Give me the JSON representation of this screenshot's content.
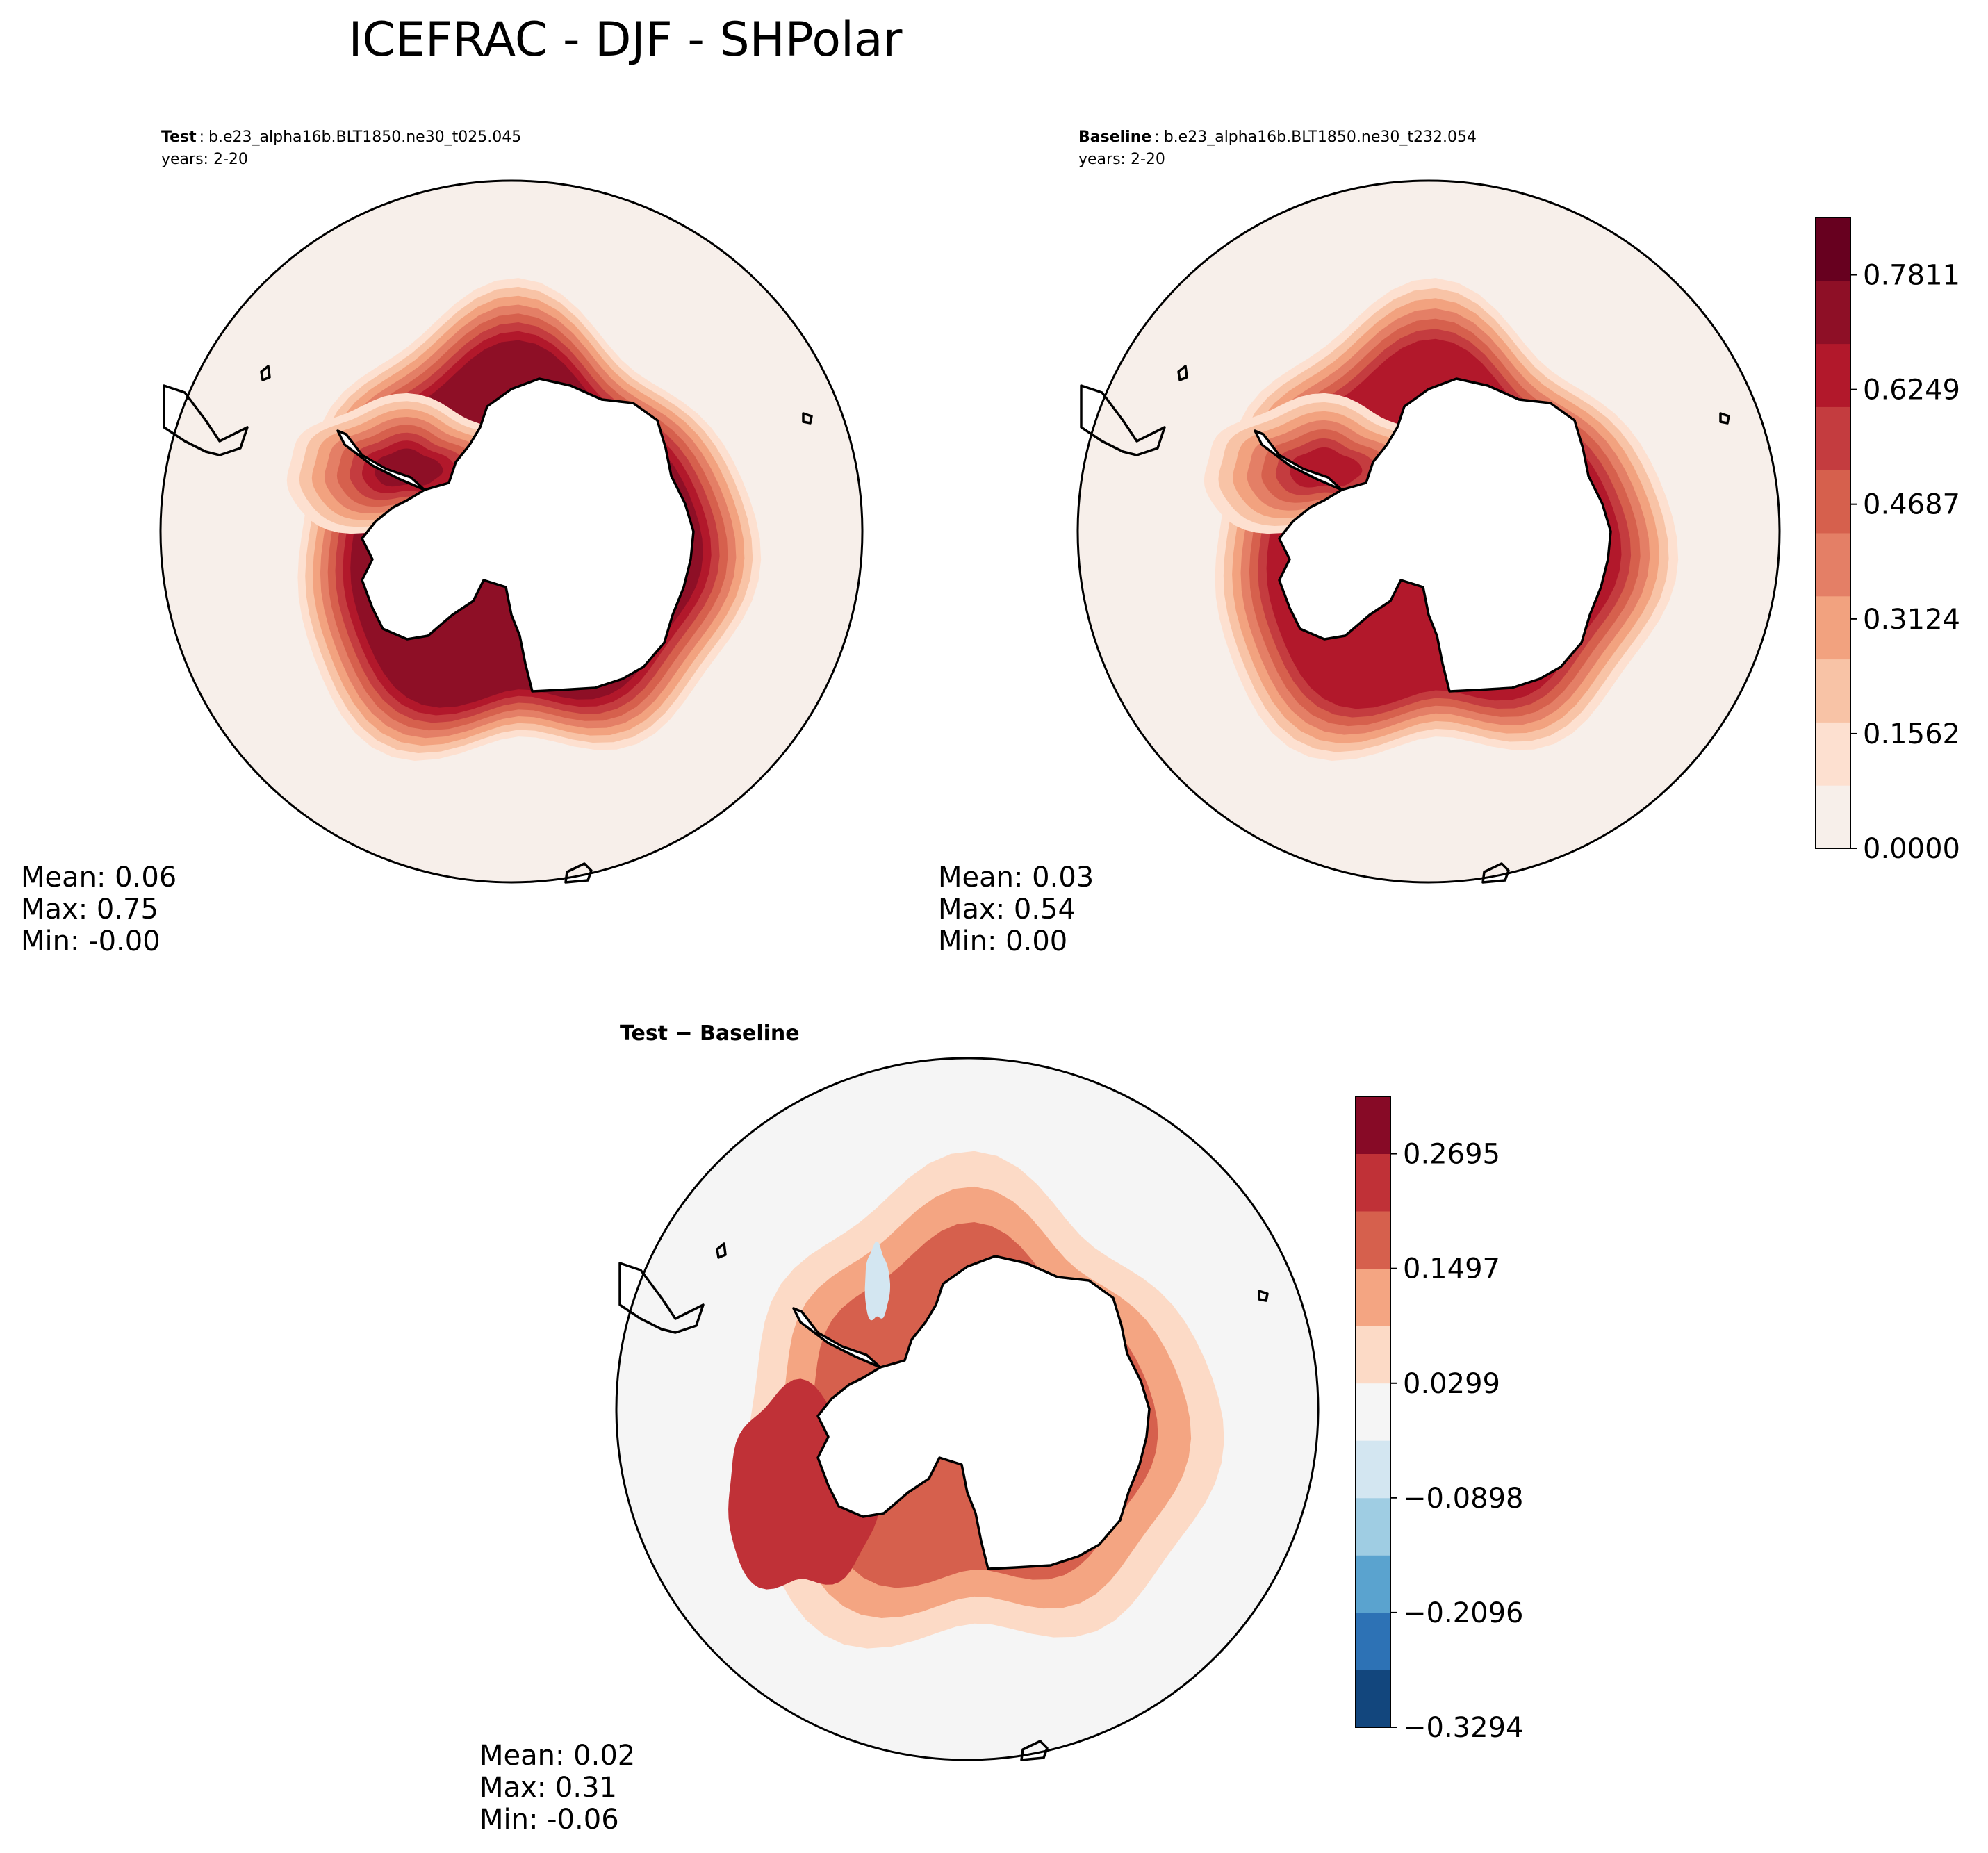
{
  "title": "ICEFRAC - DJF - SHPolar",
  "colors": {
    "frame": "#000000",
    "coast": "#000000",
    "seq": [
      "#f7efea",
      "#fde0d0",
      "#f8c3a6",
      "#f2a27f",
      "#e47f66",
      "#d6604d",
      "#c43c3f",
      "#b2182b",
      "#8e0f26",
      "#67001f"
    ],
    "div": [
      "#12467d",
      "#2d72b5",
      "#5aa3cf",
      "#9fcde3",
      "#d3e6f1",
      "#f5f5f5",
      "#fcdac6",
      "#f4a582",
      "#d6604d",
      "#c03137",
      "#870a26"
    ]
  },
  "chart_data": [
    {
      "type": "contour-map",
      "projection": "south-polar-stereographic",
      "variable": "ICEFRAC",
      "season": "DJF",
      "region": "SHPolar",
      "panel": "test",
      "label_bold": "Test",
      "label_sep": ":",
      "case": "b.e23_alpha16b.BLT1850.ne30_t025.045",
      "years": "years: 2-20",
      "stats": {
        "mean": "Mean:  0.06",
        "max": "Max:  0.75",
        "min": "Min: -0.00"
      },
      "mean": 0.06,
      "max": 0.75,
      "min": -0.0,
      "sea_ice_band_peak_level": 8
    },
    {
      "type": "contour-map",
      "projection": "south-polar-stereographic",
      "variable": "ICEFRAC",
      "season": "DJF",
      "region": "SHPolar",
      "panel": "baseline",
      "label_bold": "Baseline",
      "label_sep": ":",
      "case": "b.e23_alpha16b.BLT1850.ne30_t232.054",
      "years": "years: 2-20",
      "stats": {
        "mean": "Mean:  0.03",
        "max": "Max:  0.54",
        "min": "Min:  0.00"
      },
      "mean": 0.03,
      "max": 0.54,
      "min": 0.0,
      "sea_ice_band_peak_level": 7
    },
    {
      "type": "contour-map",
      "projection": "south-polar-stereographic",
      "panel": "difference",
      "title": "Test − Baseline",
      "stats": {
        "mean": "Mean:  0.02",
        "max": "Max:  0.31",
        "min": "Min: -0.06"
      },
      "mean": 0.02,
      "max": 0.31,
      "min": -0.06
    }
  ],
  "colorbars": [
    {
      "name": "test-baseline-colorbar",
      "min": 0.0,
      "max": 0.8592,
      "levels": 10,
      "tick_values": [
        0.0,
        0.1562,
        0.3124,
        0.4687,
        0.6249,
        0.7811
      ],
      "tick_labels": [
        "0.0000",
        "0.1562",
        "0.3124",
        "0.4687",
        "0.6249",
        "0.7811"
      ]
    },
    {
      "name": "difference-colorbar",
      "min": -0.3294,
      "max": 0.3294,
      "levels": 11,
      "tick_values": [
        -0.3294,
        -0.2096,
        -0.0898,
        0.0299,
        0.1497,
        0.2695
      ],
      "tick_labels": [
        "−0.3294",
        "−0.2096",
        "−0.0898",
        "0.0299",
        "0.1497",
        "0.2695"
      ]
    }
  ]
}
